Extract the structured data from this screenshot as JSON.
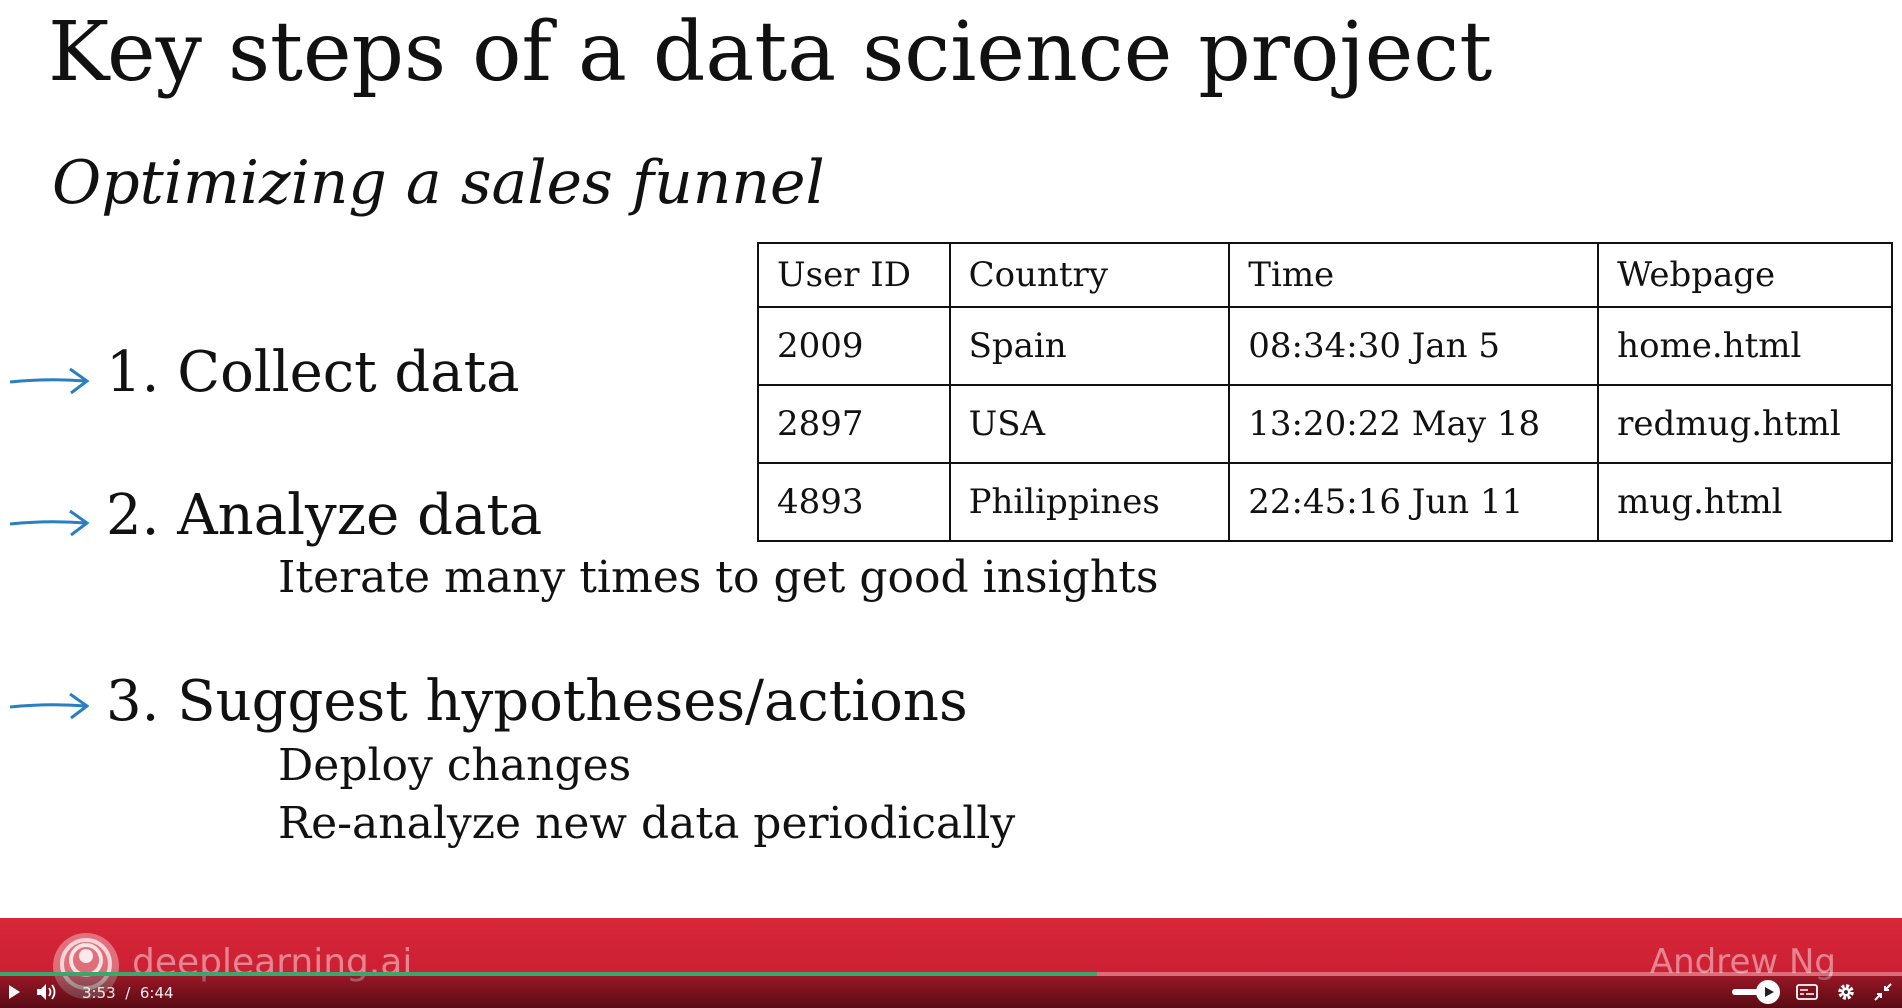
{
  "slide": {
    "title": "Key steps of a data science project",
    "subtitle": "Optimizing a sales funnel",
    "steps": [
      {
        "label": "1.  Collect data",
        "details": []
      },
      {
        "label": "2.  Analyze data",
        "details": [
          "Iterate many times to get good insights"
        ]
      },
      {
        "label": "3.  Suggest hypotheses/actions",
        "details": [
          "Deploy changes",
          "Re-analyze new data periodically"
        ]
      }
    ],
    "table": {
      "headers": [
        "User ID",
        "Country",
        "Time",
        "Webpage"
      ],
      "rows": [
        [
          "2009",
          "Spain",
          "08:34:30 Jan 5",
          "home.html"
        ],
        [
          "2897",
          "USA",
          "13:20:22 May 18",
          "redmug.html"
        ],
        [
          "4893",
          "Philippines",
          "22:45:16 Jun 11",
          "mug.html"
        ]
      ]
    },
    "brand": "deeplearning.ai",
    "author": "Andrew Ng",
    "arrow_color": "#2a7fc1",
    "banner_color": "#d0223a"
  },
  "player": {
    "current_time": "3:53",
    "separator": "/",
    "duration": "6:44",
    "progress_fraction": 0.577,
    "volume_fraction": 0.6,
    "icons": [
      "play-icon",
      "volume-icon",
      "captions-icon",
      "settings-icon",
      "exit-fullscreen-icon"
    ]
  }
}
